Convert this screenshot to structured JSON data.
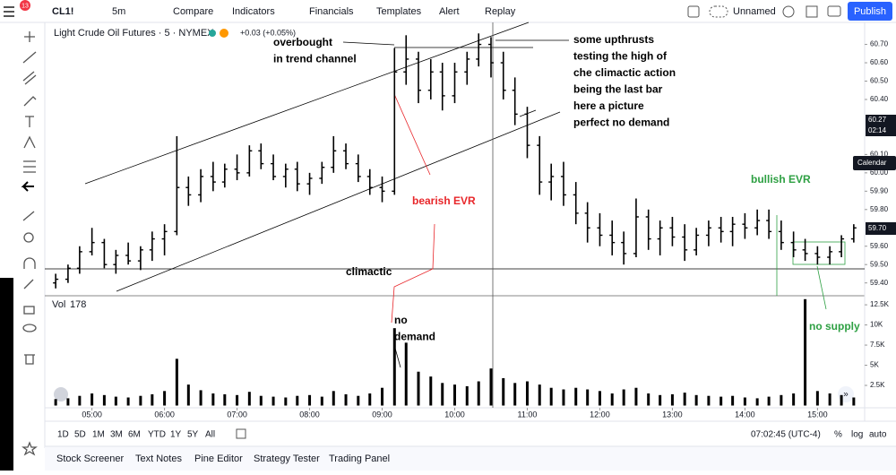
{
  "toolbar": {
    "badge": "13",
    "symbol": "CL1!",
    "interval": "5m",
    "buttons": [
      "Compare",
      "Indicators",
      "Financials",
      "Templates",
      "Alert",
      "Replay"
    ],
    "layout": "Unnamed",
    "publish": "Publish"
  },
  "chart_data": {
    "type": "ohlc",
    "title": "Light Crude Oil Futures · 5 · NYMEX",
    "subtitle": "+0.03 (+0.05%)",
    "color": "#000000",
    "x": [
      4.5,
      4.67,
      4.83,
      5,
      5.17,
      5.33,
      5.5,
      5.67,
      5.83,
      6,
      6.17,
      6.33,
      6.5,
      6.67,
      6.83,
      7,
      7.17,
      7.33,
      7.5,
      7.67,
      7.83,
      8,
      8.17,
      8.33,
      8.5,
      8.67,
      8.83,
      9,
      9.17,
      9.33,
      9.5,
      9.67,
      9.83,
      10,
      10.17,
      10.33,
      10.5,
      10.67,
      10.83,
      11,
      11.17,
      11.33,
      11.5,
      11.67,
      11.83,
      12,
      12.17,
      12.33,
      12.5,
      12.67,
      12.83,
      13,
      13.17,
      13.33,
      13.5,
      13.67,
      13.83,
      14,
      14.17,
      14.33,
      14.5,
      14.67,
      14.83,
      15,
      15.17,
      15.33,
      15.5
    ],
    "open": [
      59.4,
      59.42,
      59.48,
      59.57,
      59.62,
      59.5,
      59.55,
      59.52,
      59.58,
      59.64,
      59.68,
      59.92,
      59.88,
      59.98,
      59.95,
      60.02,
      60.0,
      60.12,
      60.05,
      59.98,
      60.02,
      59.94,
      59.97,
      60.03,
      60.12,
      60.05,
      59.98,
      59.92,
      59.9,
      60.55,
      60.62,
      60.45,
      60.55,
      60.42,
      60.55,
      60.62,
      60.7,
      60.6,
      60.45,
      60.32,
      60.15,
      59.95,
      59.98,
      59.88,
      59.78,
      59.7,
      59.66,
      59.62,
      59.56,
      59.76,
      59.64,
      59.7,
      59.65,
      59.58,
      59.66,
      59.7,
      59.68,
      59.72,
      59.7,
      59.74,
      59.68,
      59.62,
      59.58,
      59.56,
      59.54,
      59.57,
      59.64
    ],
    "high": [
      59.45,
      59.5,
      59.6,
      59.7,
      59.64,
      59.58,
      59.62,
      59.6,
      59.68,
      59.72,
      60.2,
      59.98,
      60.02,
      60.06,
      60.05,
      60.1,
      60.15,
      60.16,
      60.1,
      60.05,
      60.06,
      60.0,
      60.06,
      60.2,
      60.16,
      60.1,
      60.02,
      59.98,
      60.68,
      60.75,
      60.66,
      60.62,
      60.6,
      60.6,
      60.66,
      60.76,
      60.74,
      60.66,
      60.52,
      60.36,
      60.2,
      60.05,
      60.06,
      59.95,
      59.84,
      59.78,
      59.74,
      59.68,
      59.86,
      59.8,
      59.74,
      59.76,
      59.72,
      59.7,
      59.74,
      59.76,
      59.76,
      59.78,
      59.8,
      59.8,
      59.74,
      59.68,
      59.64,
      59.6,
      59.6,
      59.66,
      59.72
    ],
    "low": [
      59.37,
      59.4,
      59.45,
      59.55,
      59.48,
      59.45,
      59.5,
      59.47,
      59.52,
      59.55,
      59.66,
      59.82,
      59.84,
      59.9,
      59.92,
      59.96,
      59.98,
      60.02,
      59.96,
      59.92,
      59.9,
      59.88,
      59.94,
      60.0,
      60.02,
      59.95,
      59.88,
      59.84,
      59.88,
      60.48,
      60.38,
      60.4,
      60.34,
      60.38,
      60.48,
      60.58,
      60.52,
      60.4,
      60.26,
      60.08,
      59.88,
      59.85,
      59.82,
      59.72,
      59.62,
      59.6,
      59.55,
      59.5,
      59.54,
      59.58,
      59.55,
      59.6,
      59.52,
      59.55,
      59.6,
      59.62,
      59.6,
      59.64,
      59.66,
      59.64,
      59.58,
      59.54,
      59.52,
      59.5,
      59.5,
      59.54,
      59.62
    ],
    "close": [
      59.42,
      59.48,
      59.57,
      59.62,
      59.5,
      59.55,
      59.52,
      59.58,
      59.64,
      59.68,
      59.92,
      59.88,
      59.98,
      59.95,
      60.02,
      60.0,
      60.12,
      60.05,
      59.98,
      60.02,
      59.94,
      59.97,
      60.03,
      60.12,
      60.05,
      59.98,
      59.92,
      59.9,
      60.55,
      60.62,
      60.45,
      60.55,
      60.42,
      60.55,
      60.62,
      60.7,
      60.6,
      60.45,
      60.32,
      60.15,
      59.95,
      59.98,
      59.88,
      59.78,
      59.7,
      59.66,
      59.62,
      59.56,
      59.76,
      59.64,
      59.7,
      59.65,
      59.58,
      59.66,
      59.7,
      59.68,
      59.72,
      59.7,
      59.74,
      59.68,
      59.62,
      59.58,
      59.56,
      59.54,
      59.57,
      59.64,
      59.7
    ],
    "xlim": [
      4.35,
      15.65
    ],
    "xticks": [
      {
        "value": 5,
        "label": "05:00"
      },
      {
        "value": 6,
        "label": "06:00"
      },
      {
        "value": 7,
        "label": "07:00"
      },
      {
        "value": 8,
        "label": "08:00"
      },
      {
        "value": 9,
        "label": "09:00"
      },
      {
        "value": 10,
        "label": "10:00"
      },
      {
        "value": 11,
        "label": "11:00"
      },
      {
        "value": 12,
        "label": "12:00"
      },
      {
        "value": 13,
        "label": "13:00"
      },
      {
        "value": 14,
        "label": "14:00"
      },
      {
        "value": 15,
        "label": "15:00"
      }
    ],
    "ylim": [
      59.33,
      60.82
    ],
    "yticks": [
      {
        "value": 59.4,
        "label": "59.40"
      },
      {
        "value": 59.5,
        "label": "59.50"
      },
      {
        "value": 59.6,
        "label": "59.60"
      },
      {
        "value": 59.8,
        "label": "59.80"
      },
      {
        "value": 59.9,
        "label": "59.90"
      },
      {
        "value": 60,
        "label": "60.00"
      },
      {
        "value": 60.1,
        "label": "60.10"
      },
      {
        "value": 60.4,
        "label": "60.40"
      },
      {
        "value": 60.5,
        "label": "60.50"
      },
      {
        "value": 60.6,
        "label": "60.60"
      },
      {
        "value": 60.7,
        "label": "60.70"
      }
    ],
    "markers": {
      "last_price": "60.27",
      "countdown": "02:14",
      "calendar": "Calendar",
      "current": "59.70"
    },
    "volume": {
      "title": "Vol",
      "last": 178,
      "color": "#000000",
      "values": [
        800,
        900,
        1200,
        1500,
        1300,
        1100,
        1000,
        1200,
        1400,
        1800,
        5800,
        2600,
        1900,
        1500,
        1400,
        1300,
        1700,
        1200,
        1100,
        1000,
        1200,
        1300,
        1100,
        1800,
        1400,
        1200,
        1500,
        2200,
        9600,
        7800,
        4200,
        3600,
        2800,
        2600,
        2400,
        3000,
        4600,
        3400,
        2800,
        3000,
        2600,
        2200,
        2000,
        2200,
        2000,
        1800,
        1500,
        2000,
        2200,
        1500,
        1300,
        1400,
        1600,
        1300,
        1200,
        1100,
        1200,
        1000,
        900,
        1100,
        1300,
        1500,
        13200,
        1800,
        1500,
        1300,
        1000
      ],
      "ylim": [
        0,
        13400
      ],
      "yticks": [
        {
          "value": 2500,
          "label": "2.5K"
        },
        {
          "value": 5000,
          "label": "5K"
        },
        {
          "value": 7500,
          "label": "7.5K"
        },
        {
          "value": 10000,
          "label": "10K"
        },
        {
          "value": 12500,
          "label": "12.5K"
        }
      ]
    },
    "annotations": [
      {
        "lines": [
          "overbought",
          "in trend channel"
        ],
        "color": "#000000"
      },
      {
        "lines": [
          "some upthrusts",
          "testing the high of",
          "che climactic action",
          "being the last bar",
          "here a picture",
          "perfect no demand"
        ],
        "color": "#000000"
      },
      {
        "lines": [
          "bearish EVR"
        ],
        "color": "#e8262a"
      },
      {
        "lines": [
          "climactic"
        ],
        "color": "#000000"
      },
      {
        "lines": [
          "no",
          "demand"
        ],
        "color": "#000000"
      },
      {
        "lines": [
          "bullish EVR"
        ],
        "color": "#2ea043"
      },
      {
        "lines": [
          "no supply"
        ],
        "color": "#2ea043"
      }
    ]
  },
  "range_bar": {
    "ranges": [
      "1D",
      "5D",
      "1M",
      "3M",
      "6M",
      "YTD",
      "1Y",
      "5Y",
      "All"
    ],
    "time": "07:02:45 (UTC-4)",
    "options": [
      "%",
      "log",
      "auto"
    ]
  },
  "tabs": [
    "Stock Screener",
    "Text Notes",
    "Pine Editor",
    "Strategy Tester",
    "Trading Panel"
  ]
}
